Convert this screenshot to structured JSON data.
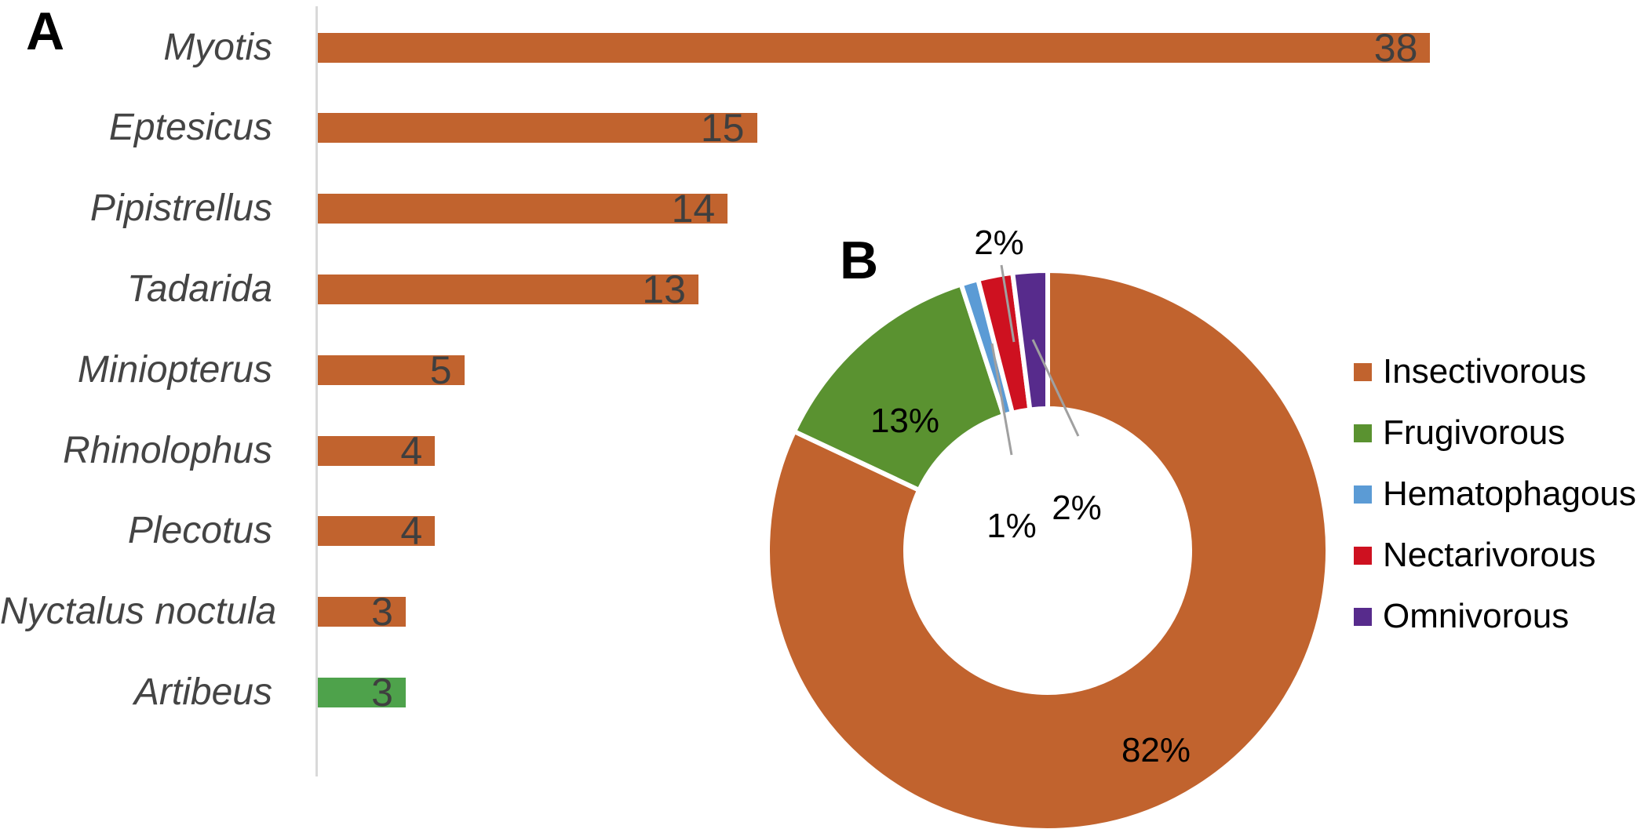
{
  "panels": {
    "a": {
      "letter": "A"
    },
    "b": {
      "letter": "B"
    }
  },
  "colors": {
    "bar_orange": "#C1632E",
    "bar_green": "#4EA24B",
    "axis_gray": "#D9D9D9",
    "leader_gray": "#A0A0A0",
    "value_text": "#3F3F3F",
    "category_text": "#444444"
  },
  "chart_data": [
    {
      "type": "bar",
      "panel": "A",
      "orientation": "horizontal",
      "categories": [
        "Myotis",
        "Eptesicus",
        "Pipistrellus",
        "Tadarida",
        "Miniopterus",
        "Rhinolophus",
        "Plecotus",
        "Nyctalus noctula",
        "Artibeus"
      ],
      "values": [
        38,
        15,
        14,
        13,
        5,
        4,
        4,
        3,
        3
      ],
      "bar_colors": [
        "#C1632E",
        "#C1632E",
        "#C1632E",
        "#C1632E",
        "#C1632E",
        "#C1632E",
        "#C1632E",
        "#C1632E",
        "#4EA24B"
      ],
      "value_labels": [
        "38",
        "15",
        "14",
        "13",
        "5",
        "4",
        "4",
        "3",
        "3"
      ],
      "xlabel": "",
      "ylabel": "",
      "grid": false,
      "axis_line": "left-vertical-light-gray"
    },
    {
      "type": "pie",
      "subtype": "donut",
      "panel": "B",
      "segments": [
        {
          "label": "Insectivorous",
          "value": 82,
          "display": "82%",
          "color": "#C1632E"
        },
        {
          "label": "Frugivorous",
          "value": 13,
          "display": "13%",
          "color": "#5A9230"
        },
        {
          "label": "Hematophagous",
          "value": 1,
          "display": "1%",
          "color": "#5B9BD5"
        },
        {
          "label": "Nectarivorous",
          "value": 2,
          "display": "2%",
          "color": "#CE1120"
        },
        {
          "label": "Omnivorous",
          "value": 2,
          "display": "2%",
          "color": "#572B8C"
        }
      ],
      "start_angle_deg_clockwise_from_top": 0,
      "legend_position": "right",
      "legend_labels": [
        "Insectivorous",
        "Frugivorous",
        "Hematophagous",
        "Nectarivorous",
        "Omnivorous"
      ]
    }
  ]
}
